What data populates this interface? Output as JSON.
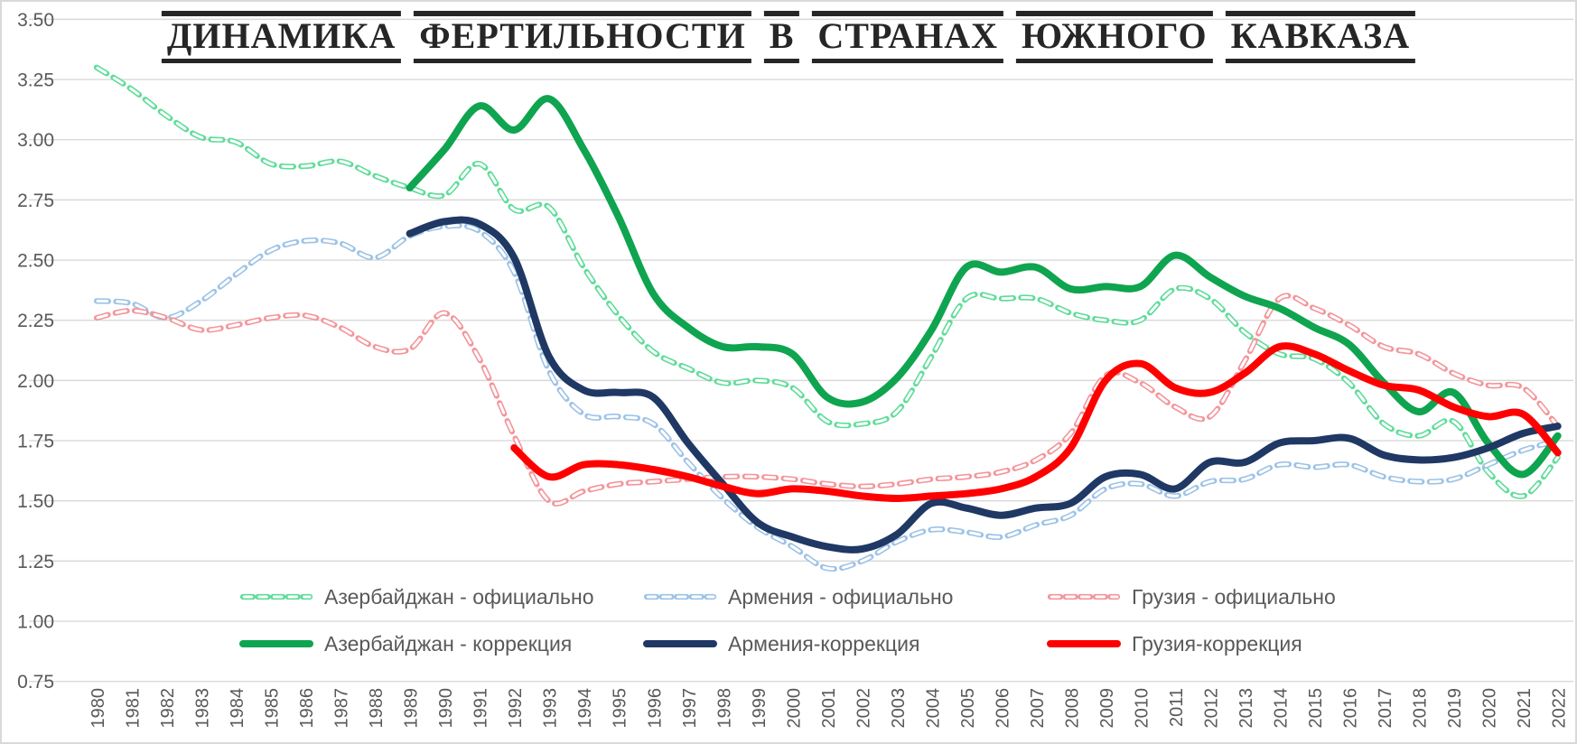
{
  "title": "ДИНАМИКА ФЕРТИЛЬНОСТИ В СТРАНАХ ЮЖНОГО КАВКАЗА",
  "colors": {
    "background": "#FFFFFF",
    "grid": "#D9D9D9",
    "axis_text": "#595959",
    "title_text": "#262626"
  },
  "chart_data": {
    "type": "line",
    "title": "ДИНАМИКА ФЕРТИЛЬНОСТИ В СТРАНАХ ЮЖНОГО КАВКАЗА",
    "xlabel": "",
    "ylabel": "",
    "ylim": [
      0.75,
      3.5
    ],
    "ytick_step": 0.25,
    "yticks": [
      "3.50",
      "3.25",
      "3.00",
      "2.75",
      "2.50",
      "2.25",
      "2.00",
      "1.75",
      "1.50",
      "1.25",
      "1.00",
      "0.75"
    ],
    "x": [
      1980,
      1981,
      1982,
      1983,
      1984,
      1985,
      1986,
      1987,
      1988,
      1989,
      1990,
      1991,
      1992,
      1993,
      1994,
      1995,
      1996,
      1997,
      1998,
      1999,
      2000,
      2001,
      2002,
      2003,
      2004,
      2005,
      2006,
      2007,
      2008,
      2009,
      2010,
      2011,
      2012,
      2013,
      2014,
      2015,
      2016,
      2017,
      2018,
      2019,
      2020,
      2021,
      2022
    ],
    "grid": true,
    "legend_position": "inside-bottom",
    "series": [
      {
        "id": "azerbaijan-official",
        "name": "Азербайджан - официально",
        "style": "dashed",
        "color": "#5FDC9A",
        "start_year": 1980,
        "values": [
          3.3,
          3.21,
          3.1,
          3.01,
          2.99,
          2.9,
          2.89,
          2.91,
          2.85,
          2.8,
          2.77,
          2.9,
          2.71,
          2.72,
          2.47,
          2.27,
          2.12,
          2.05,
          1.99,
          2.0,
          1.97,
          1.83,
          1.82,
          1.87,
          2.1,
          2.34,
          2.34,
          2.34,
          2.28,
          2.25,
          2.25,
          2.38,
          2.34,
          2.2,
          2.11,
          2.09,
          1.99,
          1.82,
          1.77,
          1.83,
          1.62,
          1.52,
          1.68
        ]
      },
      {
        "id": "armenia-official",
        "name": "Армения - официально",
        "style": "dashed",
        "color": "#9DC3E6",
        "start_year": 1980,
        "values": [
          2.33,
          2.32,
          2.26,
          2.33,
          2.44,
          2.54,
          2.58,
          2.57,
          2.51,
          2.6,
          2.64,
          2.62,
          2.45,
          2.04,
          1.86,
          1.85,
          1.82,
          1.66,
          1.51,
          1.39,
          1.31,
          1.22,
          1.25,
          1.33,
          1.38,
          1.37,
          1.35,
          1.4,
          1.44,
          1.55,
          1.57,
          1.52,
          1.58,
          1.59,
          1.65,
          1.64,
          1.65,
          1.6,
          1.58,
          1.59,
          1.65,
          1.71,
          1.75
        ]
      },
      {
        "id": "georgia-official",
        "name": "Грузия - официально",
        "style": "dashed",
        "color": "#F4959B",
        "start_year": 1980,
        "values": [
          2.26,
          2.29,
          2.26,
          2.21,
          2.23,
          2.26,
          2.27,
          2.22,
          2.14,
          2.13,
          2.28,
          2.09,
          1.77,
          1.5,
          1.54,
          1.57,
          1.58,
          1.59,
          1.6,
          1.6,
          1.59,
          1.57,
          1.56,
          1.57,
          1.59,
          1.6,
          1.62,
          1.67,
          1.78,
          2.02,
          1.99,
          1.89,
          1.85,
          2.08,
          2.34,
          2.3,
          2.23,
          2.14,
          2.11,
          2.03,
          1.98,
          1.97,
          1.81
        ]
      },
      {
        "id": "azerbaijan-correction",
        "name": "Азербайджан - коррекция",
        "style": "solid",
        "color": "#0FA44F",
        "start_year": 1989,
        "values": [
          2.8,
          2.96,
          3.14,
          3.04,
          3.17,
          2.96,
          2.68,
          2.36,
          2.22,
          2.14,
          2.14,
          2.11,
          1.93,
          1.91,
          2.01,
          2.21,
          2.47,
          2.45,
          2.47,
          2.38,
          2.39,
          2.39,
          2.52,
          2.43,
          2.35,
          2.3,
          2.22,
          2.15,
          1.99,
          1.87,
          1.95,
          1.74,
          1.61,
          1.77
        ]
      },
      {
        "id": "armenia-correction",
        "name": "Армения-коррекция",
        "style": "solid",
        "color": "#1F3864",
        "start_year": 1989,
        "values": [
          2.61,
          2.66,
          2.65,
          2.51,
          2.1,
          1.96,
          1.95,
          1.93,
          1.74,
          1.57,
          1.41,
          1.35,
          1.31,
          1.3,
          1.36,
          1.49,
          1.47,
          1.44,
          1.47,
          1.49,
          1.6,
          1.61,
          1.55,
          1.66,
          1.66,
          1.74,
          1.75,
          1.76,
          1.69,
          1.67,
          1.68,
          1.72,
          1.78,
          1.81
        ]
      },
      {
        "id": "georgia-correction",
        "name": "Грузия-коррекция",
        "style": "solid",
        "color": "#FF0000",
        "start_year": 1992,
        "values": [
          1.72,
          1.6,
          1.65,
          1.65,
          1.63,
          1.6,
          1.56,
          1.53,
          1.55,
          1.54,
          1.52,
          1.51,
          1.52,
          1.53,
          1.55,
          1.6,
          1.72,
          2.0,
          2.07,
          1.97,
          1.95,
          2.03,
          2.14,
          2.11,
          2.04,
          1.98,
          1.96,
          1.89,
          1.85,
          1.86,
          1.7
        ]
      }
    ],
    "legend_rows": [
      [
        "azerbaijan-official",
        "armenia-official",
        "georgia-official"
      ],
      [
        "azerbaijan-correction",
        "armenia-correction",
        "georgia-correction"
      ]
    ]
  }
}
